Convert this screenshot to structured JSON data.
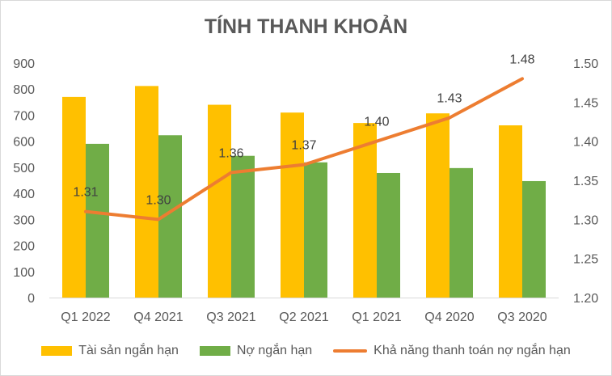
{
  "chart_data": {
    "type": "bar",
    "title": "TÍNH THANH KHOẢN",
    "categories": [
      "Q1 2022",
      "Q4 2021",
      "Q3 2021",
      "Q2 2021",
      "Q1 2021",
      "Q4 2020",
      "Q3 2020"
    ],
    "series": [
      {
        "name": "Tài sản ngắn hạn",
        "type": "bar",
        "axis": "left",
        "color": "#FFC000",
        "values": [
          770,
          812,
          740,
          710,
          670,
          707,
          661
        ]
      },
      {
        "name": "Nợ ngắn hạn",
        "type": "bar",
        "axis": "left",
        "color": "#70AD47",
        "values": [
          590,
          623,
          544,
          519,
          478,
          497,
          447
        ]
      },
      {
        "name": "Khả năng thanh toán nợ ngắn hạn",
        "type": "line",
        "axis": "right",
        "color": "#ED7D31",
        "values": [
          1.31,
          1.3,
          1.36,
          1.37,
          1.4,
          1.43,
          1.48
        ],
        "labels": [
          "1.31",
          "1.30",
          "1.36",
          "1.37",
          "1.40",
          "1.43",
          "1.48"
        ]
      }
    ],
    "y_left": {
      "min": 0,
      "max": 900,
      "ticks": [
        "0",
        "100",
        "200",
        "300",
        "400",
        "500",
        "600",
        "700",
        "800",
        "900"
      ]
    },
    "y_right": {
      "min": 1.2,
      "max": 1.5,
      "ticks": [
        "1.20",
        "1.25",
        "1.30",
        "1.35",
        "1.40",
        "1.45",
        "1.50"
      ]
    },
    "grid": false,
    "legend_position": "bottom"
  }
}
